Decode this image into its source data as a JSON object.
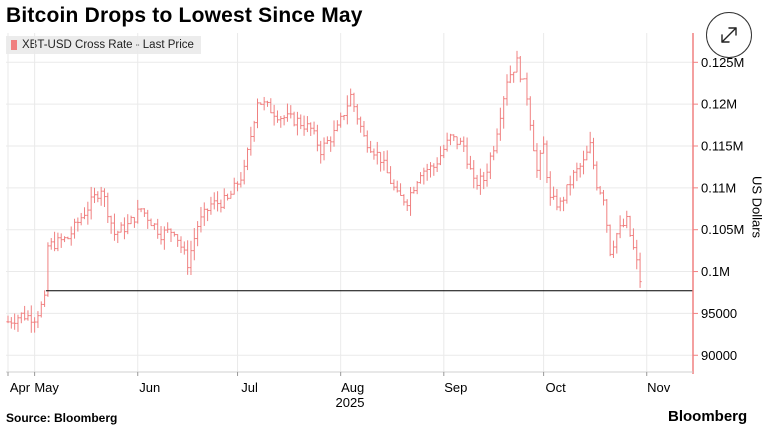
{
  "title": "Bitcoin Drops to Lowest Since May",
  "source": "Source: Bloomberg",
  "brand": "Bloomberg",
  "icons": {
    "expand": "expand-arrows-icon"
  },
  "colors": {
    "bar": "#f08080",
    "axis": "#f08080",
    "reference_line": "#000000",
    "grid": "#eaeaea"
  },
  "chart_data": {
    "type": "bar",
    "subtype": "ohlc-range",
    "legend": [
      "XBT-USD Cross Rate - Last Price"
    ],
    "legend_position": "top-left",
    "ylabel": "US Dollars",
    "year_label": "2025",
    "grid": true,
    "y_axis_side": "right",
    "ylim": [
      88000,
      128500
    ],
    "y_ticks": [
      {
        "value": 90000,
        "label": "90000"
      },
      {
        "value": 95000,
        "label": "95000"
      },
      {
        "value": 100000,
        "label": "0.1M"
      },
      {
        "value": 105000,
        "label": "0.105M"
      },
      {
        "value": 110000,
        "label": "0.11M"
      },
      {
        "value": 115000,
        "label": "0.115M"
      },
      {
        "value": 120000,
        "label": "0.12M"
      },
      {
        "value": 125000,
        "label": "0.125M"
      }
    ],
    "x_ticks": [
      {
        "label": "Apr",
        "index": 0
      },
      {
        "label": "May",
        "index": 8
      },
      {
        "label": "Jun",
        "index": 39
      },
      {
        "label": "Jul",
        "index": 69
      },
      {
        "label": "Aug",
        "index": 100
      },
      {
        "label": "Sep",
        "index": 131
      },
      {
        "label": "Oct",
        "index": 161
      },
      {
        "label": "Nov",
        "index": 192
      }
    ],
    "reference_line": 97700,
    "days": 203,
    "anchors": [
      [
        0,
        94000
      ],
      [
        4,
        94800
      ],
      [
        8,
        94500
      ],
      [
        11,
        96500
      ],
      [
        12,
        103000
      ],
      [
        18,
        104000
      ],
      [
        22,
        106500
      ],
      [
        28,
        110000
      ],
      [
        32,
        104500
      ],
      [
        36,
        105500
      ],
      [
        40,
        107500
      ],
      [
        46,
        104500
      ],
      [
        50,
        105000
      ],
      [
        54,
        101000
      ],
      [
        57,
        105500
      ],
      [
        61,
        108000
      ],
      [
        66,
        108500
      ],
      [
        71,
        112000
      ],
      [
        75,
        120500
      ],
      [
        82,
        118500
      ],
      [
        87,
        118000
      ],
      [
        91,
        117000
      ],
      [
        94,
        114500
      ],
      [
        99,
        117000
      ],
      [
        102,
        120000
      ],
      [
        103,
        121000
      ],
      [
        107,
        116000
      ],
      [
        112,
        113500
      ],
      [
        117,
        109000
      ],
      [
        120,
        108500
      ],
      [
        124,
        112000
      ],
      [
        128,
        112500
      ],
      [
        133,
        116000
      ],
      [
        137,
        115000
      ],
      [
        140,
        110500
      ],
      [
        143,
        111000
      ],
      [
        146,
        115000
      ],
      [
        150,
        123000
      ],
      [
        153,
        125000
      ],
      [
        156,
        121000
      ],
      [
        159,
        112000
      ],
      [
        161,
        115000
      ],
      [
        163,
        108500
      ],
      [
        166,
        108000
      ],
      [
        170,
        111500
      ],
      [
        173,
        113000
      ],
      [
        175,
        115000
      ],
      [
        177,
        110500
      ],
      [
        179,
        109000
      ],
      [
        181,
        102500
      ],
      [
        183,
        104500
      ],
      [
        186,
        106000
      ],
      [
        189,
        101000
      ],
      [
        190,
        99000
      ]
    ]
  }
}
